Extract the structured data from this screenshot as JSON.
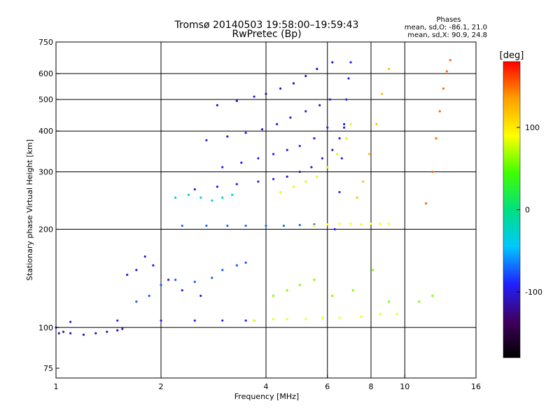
{
  "chart_data": {
    "type": "scatter",
    "title": "Tromsø 20140503 19:58:00–19:59:43",
    "subtitle": "RwPretec (Bp)",
    "xlabel": "Frequency [MHz]",
    "ylabel": "Stationary phase Virtual Height [km]",
    "x_scale": "log",
    "y_scale": "log",
    "xlim": [
      1,
      16
    ],
    "ylim": [
      70,
      750
    ],
    "x_ticks": [
      1,
      2,
      4,
      6,
      8,
      10,
      16
    ],
    "x_tick_labels": [
      "1",
      "2",
      "4",
      "6",
      "8",
      "10",
      "16"
    ],
    "y_ticks": [
      75,
      100,
      200,
      300,
      400,
      500,
      600,
      750
    ],
    "y_tick_labels": [
      "75",
      "100",
      "200",
      "300",
      "400",
      "500",
      "600",
      "750"
    ],
    "x_gridlines": [
      2,
      4,
      6,
      8,
      10
    ],
    "y_gridlines": [
      100,
      200,
      300,
      400,
      500,
      600
    ],
    "grid": true,
    "legend": {
      "title": "Phases",
      "lines": [
        "mean, sd,O: -86.1, 21.0",
        "mean, sd,X: 90.9, 24.8"
      ],
      "placement": "top-right"
    },
    "colorbar": {
      "label": "[deg]",
      "range": [
        -180,
        180
      ],
      "ticks": [
        100,
        0,
        -100
      ],
      "tick_labels": [
        "100",
        "0",
        "-100"
      ],
      "colormap": [
        "#000000",
        "#400060",
        "#2020ff",
        "#00c8ff",
        "#00e080",
        "#40ff00",
        "#ffff00",
        "#ffa000",
        "#ff0000"
      ]
    },
    "series": [
      {
        "values": [
          [
            1.02,
            96
          ],
          [
            1.05,
            97
          ],
          [
            1.1,
            96
          ],
          [
            1.2,
            95
          ],
          [
            1.3,
            96
          ],
          [
            1.4,
            97
          ],
          [
            1.5,
            98
          ],
          [
            1.55,
            99
          ]
        ],
        "phase": -110
      },
      {
        "values": [
          [
            1.0,
            100
          ],
          [
            1.1,
            104
          ],
          [
            1.5,
            105
          ],
          [
            2.0,
            105
          ],
          [
            2.5,
            105
          ],
          [
            3.0,
            105
          ],
          [
            3.5,
            105
          ],
          [
            3.7,
            105
          ]
        ],
        "phase": -95
      },
      {
        "values": [
          [
            3.7,
            105
          ],
          [
            4.2,
            106
          ],
          [
            4.6,
            106
          ],
          [
            5.2,
            106
          ],
          [
            5.8,
            107
          ],
          [
            6.5,
            107
          ],
          [
            7.5,
            108
          ],
          [
            8.5,
            110
          ],
          [
            9.5,
            110
          ]
        ],
        "phase": 85
      },
      {
        "values": [
          [
            1.7,
            120
          ],
          [
            1.85,
            125
          ],
          [
            2.0,
            135
          ],
          [
            2.2,
            140
          ],
          [
            2.5,
            138
          ],
          [
            2.8,
            142
          ],
          [
            3.0,
            150
          ],
          [
            3.3,
            155
          ],
          [
            3.5,
            158
          ]
        ],
        "phase": -75
      },
      {
        "values": [
          [
            1.6,
            145
          ],
          [
            1.7,
            150
          ],
          [
            1.8,
            165
          ],
          [
            1.9,
            155
          ],
          [
            2.1,
            140
          ],
          [
            2.3,
            130
          ],
          [
            2.6,
            125
          ]
        ],
        "phase": -100
      },
      {
        "values": [
          [
            2.3,
            205
          ],
          [
            2.7,
            205
          ],
          [
            3.1,
            205
          ],
          [
            3.5,
            205
          ],
          [
            4.0,
            205
          ],
          [
            4.5,
            205
          ],
          [
            5.0,
            206
          ],
          [
            5.5,
            207
          ]
        ],
        "phase": -70
      },
      {
        "values": [
          [
            5.5,
            205
          ],
          [
            6.0,
            207
          ],
          [
            6.5,
            208
          ],
          [
            7.0,
            208
          ],
          [
            7.5,
            207
          ],
          [
            8.0,
            208
          ],
          [
            8.5,
            208
          ],
          [
            9.0,
            208
          ]
        ],
        "phase": 90
      },
      {
        "values": [
          [
            2.2,
            250
          ],
          [
            2.4,
            255
          ],
          [
            2.6,
            250
          ],
          [
            2.8,
            245
          ],
          [
            3.0,
            250
          ],
          [
            3.2,
            255
          ]
        ],
        "phase": -30
      },
      {
        "values": [
          [
            2.5,
            265
          ],
          [
            2.9,
            270
          ],
          [
            3.3,
            275
          ],
          [
            3.8,
            280
          ],
          [
            4.2,
            285
          ],
          [
            4.6,
            290
          ],
          [
            5.0,
            300
          ],
          [
            5.4,
            310
          ],
          [
            5.8,
            330
          ],
          [
            6.2,
            350
          ],
          [
            6.5,
            380
          ],
          [
            6.7,
            410
          ]
        ],
        "phase": -100
      },
      {
        "values": [
          [
            4.4,
            260
          ],
          [
            4.8,
            270
          ],
          [
            5.2,
            280
          ],
          [
            5.6,
            290
          ],
          [
            6.0,
            310
          ],
          [
            6.4,
            340
          ],
          [
            6.8,
            380
          ],
          [
            7.0,
            420
          ]
        ],
        "phase": 80
      },
      {
        "values": [
          [
            3.0,
            310
          ],
          [
            3.4,
            320
          ],
          [
            3.8,
            330
          ],
          [
            4.2,
            340
          ],
          [
            4.6,
            350
          ],
          [
            5.0,
            360
          ],
          [
            5.5,
            380
          ],
          [
            6.0,
            410
          ]
        ],
        "phase": -95
      },
      {
        "values": [
          [
            2.7,
            375
          ],
          [
            3.1,
            385
          ],
          [
            3.5,
            395
          ],
          [
            3.9,
            405
          ],
          [
            4.3,
            420
          ],
          [
            4.7,
            440
          ],
          [
            5.2,
            460
          ],
          [
            5.7,
            480
          ],
          [
            6.1,
            500
          ]
        ],
        "phase": -100
      },
      {
        "values": [
          [
            2.9,
            480
          ],
          [
            3.3,
            495
          ],
          [
            3.7,
            510
          ],
          [
            4.0,
            520
          ],
          [
            4.4,
            540
          ],
          [
            4.8,
            560
          ],
          [
            5.2,
            590
          ],
          [
            5.6,
            620
          ],
          [
            6.2,
            650
          ]
        ],
        "phase": -110
      },
      {
        "values": [
          [
            6.3,
            200
          ],
          [
            6.5,
            260
          ],
          [
            6.6,
            330
          ],
          [
            6.7,
            420
          ],
          [
            6.8,
            500
          ],
          [
            6.9,
            580
          ],
          [
            7.0,
            650
          ]
        ],
        "phase": -90
      },
      {
        "values": [
          [
            7.3,
            250
          ],
          [
            7.6,
            280
          ],
          [
            7.9,
            340
          ],
          [
            8.3,
            420
          ],
          [
            8.6,
            520
          ],
          [
            9.0,
            620
          ]
        ],
        "phase": 120
      },
      {
        "values": [
          [
            11.5,
            240
          ],
          [
            12.0,
            300
          ],
          [
            12.3,
            380
          ],
          [
            12.6,
            460
          ],
          [
            12.9,
            540
          ],
          [
            13.2,
            610
          ],
          [
            13.5,
            660
          ]
        ],
        "phase": 150
      },
      {
        "values": [
          [
            4.2,
            125
          ],
          [
            4.6,
            130
          ],
          [
            5.0,
            135
          ],
          [
            5.5,
            140
          ],
          [
            6.2,
            125
          ],
          [
            7.1,
            130
          ],
          [
            8.1,
            150
          ],
          [
            9.0,
            120
          ],
          [
            11.0,
            120
          ],
          [
            12.0,
            125
          ]
        ],
        "phase": 60
      }
    ]
  }
}
